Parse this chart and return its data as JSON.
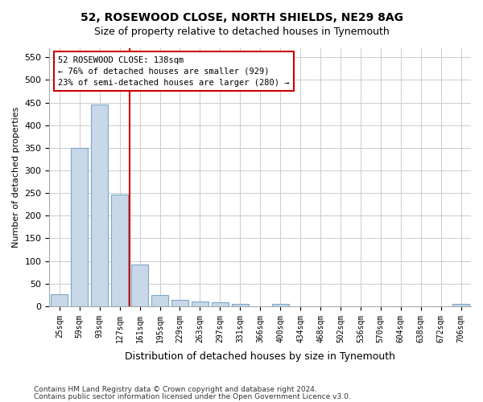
{
  "title": "52, ROSEWOOD CLOSE, NORTH SHIELDS, NE29 8AG",
  "subtitle": "Size of property relative to detached houses in Tynemouth",
  "xlabel": "Distribution of detached houses by size in Tynemouth",
  "ylabel": "Number of detached properties",
  "bar_color": "#c8d8e8",
  "bar_edge_color": "#7aa8cc",
  "vline_color": "#cc0000",
  "vline_x_index": 3,
  "categories": [
    "25sqm",
    "59sqm",
    "93sqm",
    "127sqm",
    "161sqm",
    "195sqm",
    "229sqm",
    "263sqm",
    "297sqm",
    "331sqm",
    "366sqm",
    "400sqm",
    "434sqm",
    "468sqm",
    "502sqm",
    "536sqm",
    "570sqm",
    "604sqm",
    "638sqm",
    "672sqm",
    "706sqm"
  ],
  "values": [
    27,
    350,
    445,
    247,
    93,
    25,
    14,
    11,
    8,
    5,
    0,
    5,
    0,
    0,
    0,
    0,
    0,
    0,
    0,
    0,
    5
  ],
  "ylim": [
    0,
    570
  ],
  "yticks": [
    0,
    50,
    100,
    150,
    200,
    250,
    300,
    350,
    400,
    450,
    500,
    550
  ],
  "annotation_line1": "52 ROSEWOOD CLOSE: 138sqm",
  "annotation_line2": "← 76% of detached houses are smaller (929)",
  "annotation_line3": "23% of semi-detached houses are larger (280) →",
  "footer_line1": "Contains HM Land Registry data © Crown copyright and database right 2024.",
  "footer_line2": "Contains public sector information licensed under the Open Government Licence v3.0.",
  "background_color": "#ffffff",
  "grid_color": "#cccccc",
  "ann_box_edge_color": "#cc0000"
}
